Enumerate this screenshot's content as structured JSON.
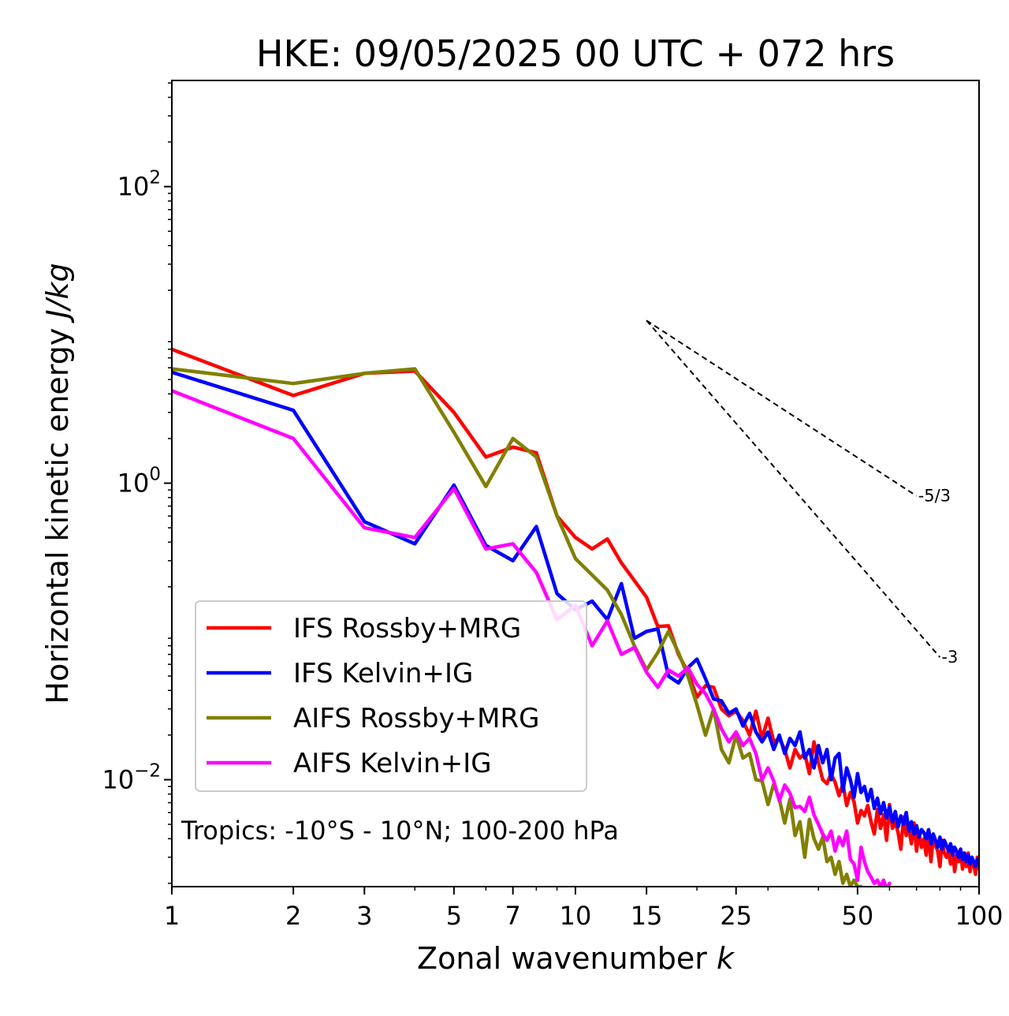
{
  "chart_data": {
    "type": "line",
    "title": "HKE: 09/05/2025 00 UTC + 072 hrs",
    "xlabel": "Zonal wavenumber ",
    "xlabel_symbol": "k",
    "ylabel": "Horizontal kinetic energy ",
    "ylabel_symbol": "J/kg",
    "xscale": "log",
    "yscale": "log",
    "xlim": [
      1,
      100
    ],
    "ylim": [
      0.0019,
      520
    ],
    "xticks": [
      1,
      2,
      3,
      5,
      7,
      10,
      15,
      25,
      50,
      100
    ],
    "xtick_labels": [
      "1",
      "2",
      "3",
      "5",
      "7",
      "10",
      "15",
      "25",
      "50",
      "100"
    ],
    "yticks": [
      0.01,
      1,
      100
    ],
    "ytick_labels": [
      {
        "base": "10",
        "exp": "−2"
      },
      {
        "base": "10",
        "exp": "0"
      },
      {
        "base": "10",
        "exp": "2"
      }
    ],
    "legend_position": "lower-left",
    "annotation": "Tropics: -10°S - 10°N; 100-200 hPa",
    "reference_slopes": [
      {
        "label": "-5/3",
        "x": [
          15,
          70
        ],
        "y": [
          12.5,
          0.82
        ]
      },
      {
        "label": "-3",
        "x": [
          15,
          80
        ],
        "y": [
          12.5,
          0.067
        ]
      }
    ],
    "series": [
      {
        "name": "IFS Rossby+MRG",
        "color": "#ff0000",
        "x": [
          1,
          2,
          3,
          4,
          5,
          6,
          7,
          8,
          9,
          10,
          11,
          12,
          13,
          14,
          15,
          16,
          17,
          18,
          19,
          20,
          21,
          22,
          23,
          24,
          25,
          26,
          27,
          28,
          29,
          30,
          31,
          32,
          33,
          34,
          35,
          36,
          37,
          38,
          39,
          40,
          41,
          42,
          43,
          44,
          45,
          46,
          47,
          48,
          49,
          50,
          51,
          52,
          53,
          54,
          55,
          56,
          57,
          58,
          59,
          60,
          61,
          62,
          63,
          64,
          65,
          66,
          67,
          68,
          69,
          70,
          71,
          72,
          73,
          74,
          75,
          76,
          77,
          78,
          79,
          80,
          81,
          82,
          83,
          84,
          85,
          86,
          87,
          88,
          89,
          90,
          91,
          92,
          93,
          94,
          95,
          96,
          97,
          98,
          99,
          100
        ],
        "y": [
          8.0,
          3.9,
          5.5,
          5.7,
          3.0,
          1.5,
          1.75,
          1.6,
          0.6,
          0.43,
          0.36,
          0.42,
          0.29,
          0.22,
          0.17,
          0.108,
          0.109,
          0.07,
          0.053,
          0.036,
          0.043,
          0.042,
          0.03,
          0.027,
          0.029,
          0.025,
          0.02,
          0.029,
          0.019,
          0.026,
          0.018,
          0.019,
          0.016,
          0.012,
          0.016,
          0.014,
          0.015,
          0.011,
          0.018,
          0.013,
          0.01,
          0.0094,
          0.011,
          0.0096,
          0.0078,
          0.0094,
          0.0067,
          0.0082,
          0.0071,
          0.0051,
          0.0062,
          0.0057,
          0.0067,
          0.0052,
          0.0043,
          0.0063,
          0.0047,
          0.0058,
          0.0039,
          0.0068,
          0.0047,
          0.0052,
          0.0044,
          0.0034,
          0.0056,
          0.0042,
          0.0047,
          0.0037,
          0.0051,
          0.0033,
          0.0044,
          0.0035,
          0.004,
          0.0031,
          0.0044,
          0.0028,
          0.0041,
          0.0036,
          0.0033,
          0.0026,
          0.0039,
          0.0032,
          0.003,
          0.0033,
          0.0027,
          0.0035,
          0.0024,
          0.0031,
          0.0028,
          0.0034,
          0.0025,
          0.003,
          0.0026,
          0.0032,
          0.0024,
          0.0029,
          0.0027,
          0.0023,
          0.003,
          0.0025
        ]
      },
      {
        "name": "IFS Kelvin+IG",
        "color": "#0000ff",
        "x": [
          1,
          2,
          3,
          4,
          5,
          6,
          7,
          8,
          9,
          10,
          11,
          12,
          13,
          14,
          15,
          16,
          17,
          18,
          19,
          20,
          21,
          22,
          23,
          24,
          25,
          26,
          27,
          28,
          29,
          30,
          31,
          32,
          33,
          34,
          35,
          36,
          37,
          38,
          39,
          40,
          41,
          42,
          43,
          44,
          45,
          46,
          47,
          48,
          49,
          50,
          51,
          52,
          53,
          54,
          55,
          56,
          57,
          58,
          59,
          60,
          61,
          62,
          63,
          64,
          65,
          66,
          67,
          68,
          69,
          70,
          71,
          72,
          73,
          74,
          75,
          76,
          77,
          78,
          79,
          80,
          81,
          82,
          83,
          84,
          85,
          86,
          87,
          88,
          89,
          90,
          91,
          92,
          93,
          94,
          95,
          96,
          97,
          98,
          99,
          100
        ],
        "y": [
          5.6,
          3.1,
          0.55,
          0.39,
          0.97,
          0.38,
          0.3,
          0.51,
          0.18,
          0.14,
          0.16,
          0.12,
          0.21,
          0.09,
          0.1,
          0.104,
          0.05,
          0.045,
          0.057,
          0.065,
          0.048,
          0.035,
          0.034,
          0.028,
          0.03,
          0.023,
          0.028,
          0.021,
          0.018,
          0.021,
          0.016,
          0.02,
          0.015,
          0.019,
          0.017,
          0.021,
          0.014,
          0.016,
          0.012,
          0.017,
          0.013,
          0.016,
          0.01,
          0.014,
          0.015,
          0.0084,
          0.012,
          0.01,
          0.0076,
          0.011,
          0.0082,
          0.009,
          0.0072,
          0.0086,
          0.0064,
          0.0075,
          0.0059,
          0.007,
          0.0055,
          0.0066,
          0.0052,
          0.0061,
          0.0048,
          0.0057,
          0.005,
          0.006,
          0.0045,
          0.0052,
          0.0043,
          0.0049,
          0.0041,
          0.0046,
          0.0044,
          0.004,
          0.0046,
          0.0037,
          0.0043,
          0.0039,
          0.0035,
          0.0041,
          0.0034,
          0.0039,
          0.0036,
          0.0033,
          0.0037,
          0.0031,
          0.0035,
          0.0033,
          0.003,
          0.0034,
          0.0029,
          0.0032,
          0.0028,
          0.0031,
          0.0027,
          0.003,
          0.0028,
          0.0026,
          0.0029,
          0.0027
        ]
      },
      {
        "name": "AIFS Rossby+MRG",
        "color": "#808000",
        "x": [
          1,
          2,
          3,
          4,
          5,
          6,
          7,
          8,
          9,
          10,
          11,
          12,
          13,
          14,
          15,
          16,
          17,
          18,
          19,
          20,
          21,
          22,
          23,
          24,
          25,
          26,
          27,
          28,
          29,
          30,
          31,
          32,
          33,
          34,
          35,
          36,
          37,
          38,
          39,
          40,
          41,
          42,
          43,
          44,
          45,
          46,
          47,
          48,
          49,
          50,
          51
        ],
        "y": [
          5.9,
          4.7,
          5.5,
          5.9,
          2.2,
          0.95,
          2.0,
          1.5,
          0.6,
          0.31,
          0.24,
          0.19,
          0.13,
          0.08,
          0.055,
          0.072,
          0.1,
          0.072,
          0.05,
          0.032,
          0.02,
          0.03,
          0.016,
          0.013,
          0.02,
          0.014,
          0.015,
          0.01,
          0.0098,
          0.0068,
          0.0094,
          0.0074,
          0.0051,
          0.0074,
          0.0042,
          0.0052,
          0.003,
          0.0054,
          0.004,
          0.0034,
          0.0041,
          0.0028,
          0.003,
          0.0023,
          0.0028,
          0.002,
          0.0023,
          0.0019,
          0.0021,
          0.0019,
          0.0019
        ]
      },
      {
        "name": "AIFS Kelvin+IG",
        "color": "#ff00ff",
        "x": [
          1,
          2,
          3,
          4,
          5,
          6,
          7,
          8,
          9,
          10,
          11,
          12,
          13,
          14,
          15,
          16,
          17,
          18,
          19,
          20,
          21,
          22,
          23,
          24,
          25,
          26,
          27,
          28,
          29,
          30,
          31,
          32,
          33,
          34,
          35,
          36,
          37,
          38,
          39,
          40,
          41,
          42,
          43,
          44,
          45,
          46,
          47,
          48,
          49,
          50,
          51,
          52,
          53,
          54,
          55,
          56,
          57,
          58,
          59,
          60
        ],
        "y": [
          4.2,
          2.0,
          0.5,
          0.43,
          0.92,
          0.36,
          0.39,
          0.25,
          0.12,
          0.15,
          0.08,
          0.118,
          0.07,
          0.078,
          0.053,
          0.042,
          0.055,
          0.05,
          0.057,
          0.044,
          0.038,
          0.03,
          0.022,
          0.018,
          0.021,
          0.017,
          0.019,
          0.015,
          0.01,
          0.012,
          0.0098,
          0.0072,
          0.0092,
          0.0081,
          0.0065,
          0.0066,
          0.0061,
          0.0076,
          0.0058,
          0.005,
          0.0043,
          0.0039,
          0.0045,
          0.0033,
          0.0041,
          0.0036,
          0.0045,
          0.0029,
          0.0027,
          0.0021,
          0.0035,
          0.0028,
          0.0024,
          0.0022,
          0.002,
          0.0021,
          0.0019,
          0.0021,
          0.0018,
          0.002
        ]
      }
    ]
  }
}
